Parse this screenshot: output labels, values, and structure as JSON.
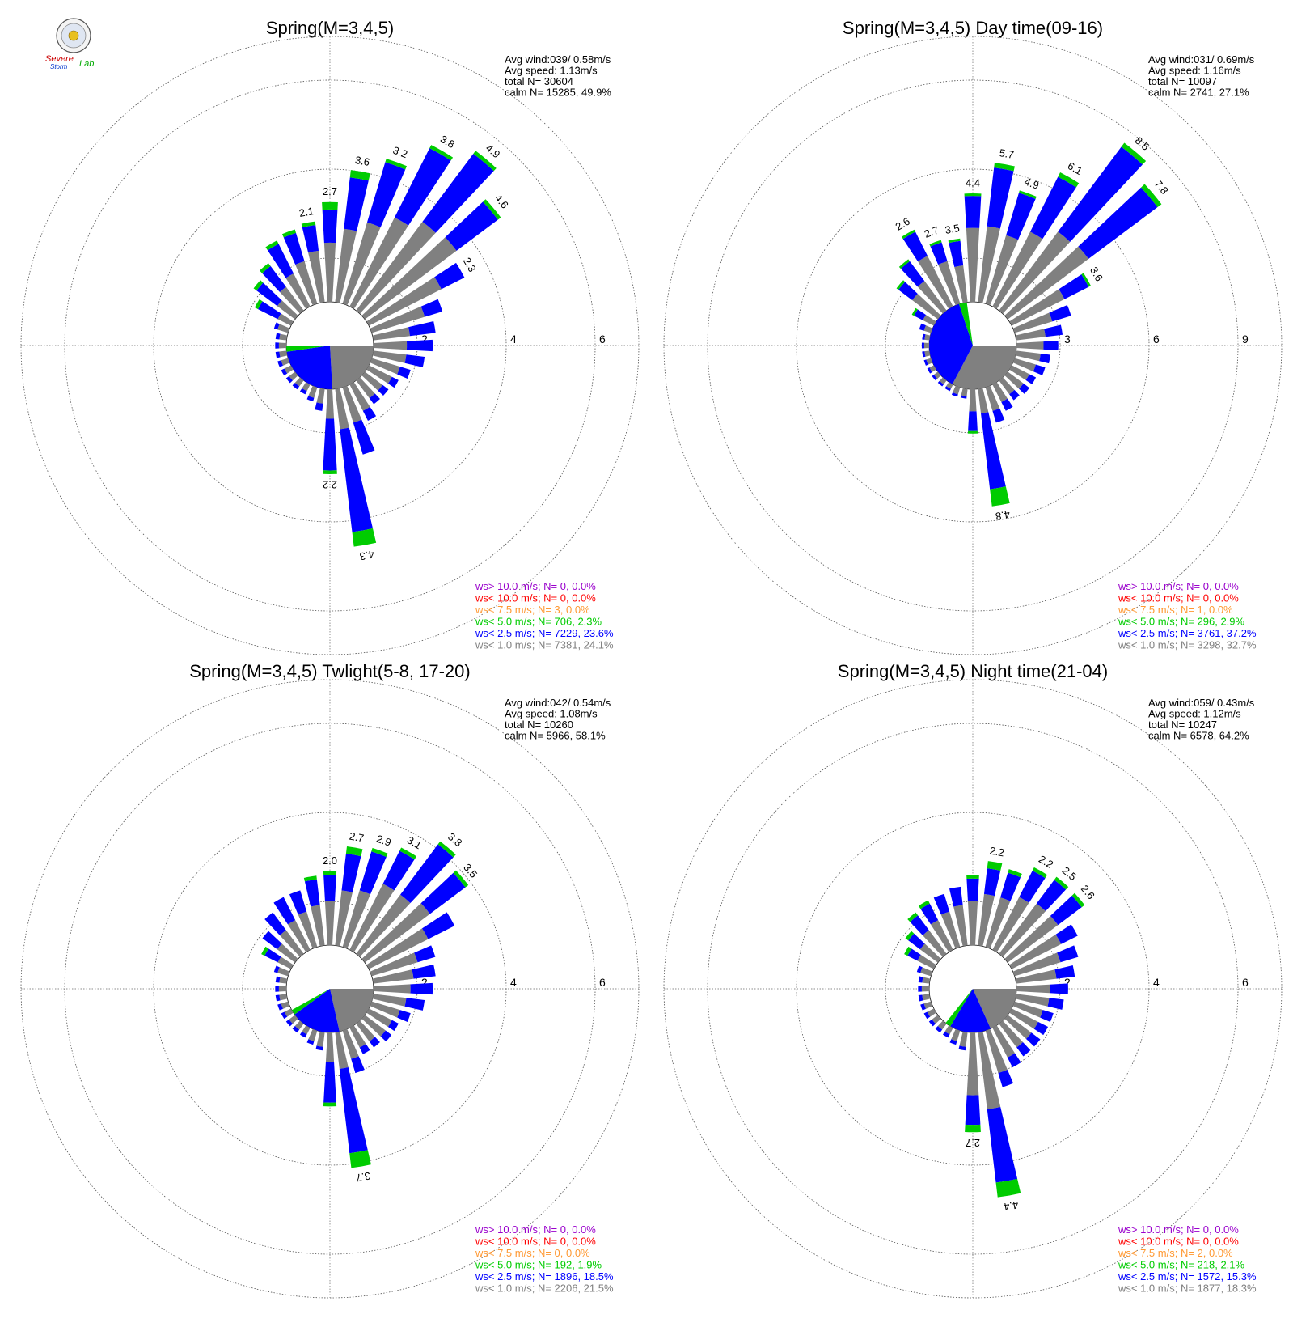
{
  "logo": {
    "text_severe": "Severe",
    "text_storm": "Storm",
    "text_lab": "Lab."
  },
  "legend_colors": {
    "ws_gt_10": "#9900cc",
    "ws_lt_10": "#ff0000",
    "ws_lt_7_5": "#ff9933",
    "ws_lt_5": "#00cc00",
    "ws_lt_2_5": "#0000ff",
    "ws_lt_1": "#808080"
  },
  "chart_data": [
    {
      "type": "wind-rose",
      "title": "Spring(M=3,4,5)",
      "rings": [
        2,
        4,
        6
      ],
      "ring_labels": [
        "2",
        "4",
        "6"
      ],
      "stats": {
        "line1": "Avg wind:039/ 0.58m/s",
        "line2": "Avg speed: 1.13m/s",
        "line3": "total N=      30604",
        "line4": "calm N=  15285,  49.9%"
      },
      "directions_deg": [
        0,
        10,
        20,
        30,
        40,
        50,
        60,
        70,
        80,
        90,
        100,
        110,
        120,
        130,
        140,
        150,
        160,
        170,
        180,
        190,
        200,
        210,
        220,
        230,
        240,
        250,
        260,
        270,
        280,
        290,
        300,
        310,
        320,
        330,
        340,
        350
      ],
      "gray_pct": [
        1.6,
        2.0,
        2.3,
        2.7,
        3.0,
        3.1,
        2.2,
        1.5,
        1.0,
        0.9,
        0.9,
        0.8,
        0.7,
        0.6,
        0.6,
        0.8,
        1.0,
        1.1,
        0.8,
        0.4,
        0.3,
        0.2,
        0.2,
        0.2,
        0.2,
        0.2,
        0.2,
        0.2,
        0.2,
        0.3,
        0.4,
        0.6,
        0.8,
        1.0,
        1.2,
        1.4
      ],
      "blue_pct": [
        0.9,
        1.4,
        1.7,
        2.1,
        2.3,
        1.4,
        0.7,
        0.5,
        0.7,
        0.7,
        0.5,
        0.3,
        0.2,
        0.2,
        0.2,
        0.3,
        0.9,
        2.8,
        1.4,
        0.2,
        0.1,
        0.1,
        0.1,
        0.1,
        0.1,
        0.1,
        0.1,
        0.1,
        0.1,
        0.1,
        0.6,
        0.7,
        0.7,
        0.9,
        0.8,
        0.7
      ],
      "green_pct": [
        0.2,
        0.2,
        0.1,
        0.1,
        0.1,
        0.1,
        0.0,
        0.0,
        0.0,
        0.0,
        0.0,
        0.0,
        0.0,
        0.0,
        0.0,
        0.0,
        0.0,
        0.4,
        0.1,
        0.0,
        0.0,
        0.0,
        0.0,
        0.0,
        0.0,
        0.0,
        0.0,
        0.0,
        0.0,
        0.0,
        0.1,
        0.1,
        0.1,
        0.1,
        0.1,
        0.1
      ],
      "bar_labels": [
        {
          "dir": 0,
          "text": "2.7"
        },
        {
          "dir": 10,
          "text": "3.6"
        },
        {
          "dir": 20,
          "text": "3.2"
        },
        {
          "dir": 30,
          "text": "3.8"
        },
        {
          "dir": 40,
          "text": "4.9"
        },
        {
          "dir": 50,
          "text": "4.6"
        },
        {
          "dir": 60,
          "text": "2.3"
        },
        {
          "dir": 170,
          "text": "4.3"
        },
        {
          "dir": 180,
          "text": "2.2"
        },
        {
          "dir": 350,
          "text": "2.1"
        }
      ],
      "pie": [
        {
          "label": "ws< 1.0 m/s",
          "pct": 24.1,
          "color": "#808080"
        },
        {
          "label": "ws< 2.5 m/s",
          "pct": 23.6,
          "color": "#0000ff"
        },
        {
          "label": "ws< 5.0 m/s",
          "pct": 2.3,
          "color": "#00cc00"
        }
      ],
      "legend": [
        {
          "text": "ws> 10.0 m/s; N=     0,  0.0%",
          "color": "#9900cc"
        },
        {
          "text": "ws< 10.0 m/s; N=     0,  0.0%",
          "color": "#ff0000"
        },
        {
          "text": "ws<  7.5 m/s; N=     3,  0.0%",
          "color": "#ff9933"
        },
        {
          "text": "ws<  5.0 m/s; N=   706,  2.3%",
          "color": "#00cc00"
        },
        {
          "text": "ws<  2.5 m/s; N=  7229, 23.6%",
          "color": "#0000ff"
        },
        {
          "text": "ws<  1.0 m/s; N=  7381, 24.1%",
          "color": "#808080"
        }
      ]
    },
    {
      "type": "wind-rose",
      "title": "Spring(M=3,4,5) Day time(09-16)",
      "rings": [
        3,
        6,
        9
      ],
      "ring_labels": [
        "3",
        "6",
        "9"
      ],
      "stats": {
        "line1": "Avg wind:031/ 0.69m/s",
        "line2": "Avg speed: 1.16m/s",
        "line3": "total N=      10097",
        "line4": "calm N=   2741,  27.1%"
      },
      "directions_deg": [
        0,
        10,
        20,
        30,
        40,
        50,
        60,
        70,
        80,
        90,
        100,
        110,
        120,
        130,
        140,
        150,
        160,
        170,
        180,
        190,
        200,
        210,
        220,
        230,
        240,
        250,
        260,
        270,
        280,
        290,
        300,
        310,
        320,
        330,
        340,
        350
      ],
      "gray_pct": [
        3.0,
        3.1,
        2.9,
        3.4,
        4.0,
        4.1,
        2.4,
        1.6,
        1.2,
        1.1,
        1.0,
        0.9,
        0.8,
        0.8,
        0.7,
        0.8,
        1.0,
        1.0,
        0.9,
        0.3,
        0.3,
        0.2,
        0.2,
        0.2,
        0.2,
        0.2,
        0.2,
        0.2,
        0.2,
        0.3,
        0.5,
        1.3,
        1.5,
        2.3,
        1.8,
        1.5
      ],
      "blue_pct": [
        1.3,
        2.4,
        1.8,
        2.5,
        4.3,
        3.5,
        1.1,
        0.8,
        0.7,
        0.6,
        0.4,
        0.4,
        0.3,
        0.3,
        0.3,
        0.4,
        0.5,
        3.1,
        0.8,
        0.1,
        0.1,
        0.1,
        0.1,
        0.1,
        0.1,
        0.1,
        0.1,
        0.1,
        0.1,
        0.2,
        0.4,
        0.7,
        1.0,
        1.1,
        0.8,
        1.0
      ],
      "green_pct": [
        0.1,
        0.2,
        0.1,
        0.2,
        0.2,
        0.2,
        0.1,
        0.0,
        0.0,
        0.0,
        0.0,
        0.0,
        0.0,
        0.0,
        0.0,
        0.0,
        0.0,
        0.7,
        0.1,
        0.0,
        0.0,
        0.0,
        0.0,
        0.0,
        0.0,
        0.0,
        0.0,
        0.0,
        0.0,
        0.0,
        0.1,
        0.1,
        0.1,
        0.1,
        0.1,
        0.1
      ],
      "bar_labels": [
        {
          "dir": 0,
          "text": "4.4"
        },
        {
          "dir": 10,
          "text": "5.7"
        },
        {
          "dir": 20,
          "text": "4.9"
        },
        {
          "dir": 30,
          "text": "6.1"
        },
        {
          "dir": 40,
          "text": "8.5"
        },
        {
          "dir": 50,
          "text": "7.8"
        },
        {
          "dir": 60,
          "text": "3.6"
        },
        {
          "dir": 170,
          "text": "4.8"
        },
        {
          "dir": 330,
          "text": "2.6"
        },
        {
          "dir": 340,
          "text": "2.7"
        },
        {
          "dir": 350,
          "text": "3.5"
        }
      ],
      "pie": [
        {
          "label": "ws< 1.0 m/s",
          "pct": 32.7,
          "color": "#808080"
        },
        {
          "label": "ws< 2.5 m/s",
          "pct": 37.2,
          "color": "#0000ff"
        },
        {
          "label": "ws< 5.0 m/s",
          "pct": 2.9,
          "color": "#00cc00"
        }
      ],
      "legend": [
        {
          "text": "ws> 10.0 m/s; N=     0,  0.0%",
          "color": "#9900cc"
        },
        {
          "text": "ws< 10.0 m/s; N=     0,  0.0%",
          "color": "#ff0000"
        },
        {
          "text": "ws<  7.5 m/s; N=     1,  0.0%",
          "color": "#ff9933"
        },
        {
          "text": "ws<  5.0 m/s; N=   296,  2.9%",
          "color": "#00cc00"
        },
        {
          "text": "ws<  2.5 m/s; N=  3761, 37.2%",
          "color": "#0000ff"
        },
        {
          "text": "ws<  1.0 m/s; N=  3298, 32.7%",
          "color": "#808080"
        }
      ]
    },
    {
      "type": "wind-rose",
      "title": "Spring(M=3,4,5) Twlight(5-8, 17-20)",
      "rings": [
        2,
        4,
        6
      ],
      "ring_labels": [
        "2",
        "4",
        "6"
      ],
      "stats": {
        "line1": "Avg wind:042/ 0.54m/s",
        "line2": "Avg speed: 1.08m/s",
        "line3": "total N=      10260",
        "line4": "calm N=   5966,  58.1%"
      },
      "directions_deg": [
        0,
        10,
        20,
        30,
        40,
        50,
        60,
        70,
        80,
        90,
        100,
        110,
        120,
        130,
        140,
        150,
        160,
        170,
        180,
        190,
        200,
        210,
        220,
        230,
        240,
        250,
        260,
        270,
        280,
        290,
        300,
        310,
        320,
        330,
        340,
        350
      ],
      "gray_pct": [
        1.2,
        1.5,
        1.6,
        2.0,
        2.0,
        2.2,
        1.8,
        1.3,
        1.1,
        1.0,
        0.9,
        0.8,
        0.7,
        0.7,
        0.6,
        0.6,
        0.8,
        1.0,
        0.8,
        0.4,
        0.3,
        0.2,
        0.2,
        0.2,
        0.2,
        0.2,
        0.2,
        0.2,
        0.2,
        0.3,
        0.4,
        0.6,
        0.8,
        0.9,
        1.0,
        1.1
      ],
      "blue_pct": [
        0.7,
        1.0,
        1.1,
        1.0,
        1.7,
        1.2,
        0.8,
        0.5,
        0.6,
        0.6,
        0.5,
        0.3,
        0.2,
        0.2,
        0.2,
        0.2,
        0.4,
        2.3,
        1.1,
        0.1,
        0.1,
        0.1,
        0.1,
        0.1,
        0.1,
        0.1,
        0.1,
        0.1,
        0.1,
        0.1,
        0.4,
        0.5,
        0.6,
        0.7,
        0.6,
        0.7
      ],
      "green_pct": [
        0.1,
        0.2,
        0.1,
        0.1,
        0.1,
        0.1,
        0.0,
        0.0,
        0.0,
        0.0,
        0.0,
        0.0,
        0.0,
        0.0,
        0.0,
        0.0,
        0.0,
        0.4,
        0.1,
        0.0,
        0.0,
        0.0,
        0.0,
        0.0,
        0.0,
        0.0,
        0.0,
        0.0,
        0.0,
        0.0,
        0.1,
        0.0,
        0.0,
        0.0,
        0.0,
        0.1
      ],
      "bar_labels": [
        {
          "dir": 0,
          "text": "2.0"
        },
        {
          "dir": 10,
          "text": "2.7"
        },
        {
          "dir": 20,
          "text": "2.9"
        },
        {
          "dir": 30,
          "text": "3.1"
        },
        {
          "dir": 40,
          "text": "3.8"
        },
        {
          "dir": 50,
          "text": "3.5"
        },
        {
          "dir": 170,
          "text": "3.7"
        }
      ],
      "pie": [
        {
          "label": "ws< 1.0 m/s",
          "pct": 21.5,
          "color": "#808080"
        },
        {
          "label": "ws< 2.5 m/s",
          "pct": 18.5,
          "color": "#0000ff"
        },
        {
          "label": "ws< 5.0 m/s",
          "pct": 1.9,
          "color": "#00cc00"
        }
      ],
      "legend": [
        {
          "text": "ws> 10.0 m/s; N=     0,  0.0%",
          "color": "#9900cc"
        },
        {
          "text": "ws< 10.0 m/s; N=     0,  0.0%",
          "color": "#ff0000"
        },
        {
          "text": "ws<  7.5 m/s; N=     0,  0.0%",
          "color": "#ff9933"
        },
        {
          "text": "ws<  5.0 m/s; N=   192,  1.9%",
          "color": "#00cc00"
        },
        {
          "text": "ws<  2.5 m/s; N=  1896, 18.5%",
          "color": "#0000ff"
        },
        {
          "text": "ws<  1.0 m/s; N=  2206, 21.5%",
          "color": "#808080"
        }
      ]
    },
    {
      "type": "wind-rose",
      "title": "Spring(M=3,4,5) Night time(21-04)",
      "rings": [
        2,
        4,
        6
      ],
      "ring_labels": [
        "2",
        "4",
        "6"
      ],
      "stats": {
        "line1": "Avg wind:059/ 0.43m/s",
        "line2": "Avg speed: 1.12m/s",
        "line3": "total N=      10247",
        "line4": "calm N=   6578,  64.2%"
      },
      "directions_deg": [
        0,
        10,
        20,
        30,
        40,
        50,
        60,
        70,
        80,
        90,
        100,
        110,
        120,
        130,
        140,
        150,
        160,
        170,
        180,
        190,
        200,
        210,
        220,
        230,
        240,
        250,
        260,
        270,
        280,
        290,
        300,
        310,
        320,
        330,
        340,
        350
      ],
      "gray_pct": [
        1.2,
        1.4,
        1.4,
        1.6,
        1.7,
        1.7,
        1.5,
        1.3,
        1.1,
        0.9,
        0.9,
        0.8,
        0.8,
        0.8,
        0.8,
        0.9,
        1.2,
        2.1,
        1.7,
        0.4,
        0.3,
        0.2,
        0.2,
        0.2,
        0.2,
        0.2,
        0.2,
        0.2,
        0.2,
        0.3,
        0.5,
        0.6,
        0.8,
        0.9,
        1.0,
        1.1
      ],
      "blue_pct": [
        0.6,
        0.7,
        0.7,
        0.8,
        0.8,
        0.8,
        0.5,
        0.5,
        0.5,
        0.5,
        0.4,
        0.3,
        0.3,
        0.3,
        0.3,
        0.3,
        0.4,
        2.0,
        0.8,
        0.1,
        0.1,
        0.1,
        0.1,
        0.1,
        0.1,
        0.1,
        0.1,
        0.1,
        0.1,
        0.1,
        0.3,
        0.4,
        0.5,
        0.5,
        0.5,
        0.5
      ],
      "green_pct": [
        0.1,
        0.2,
        0.1,
        0.1,
        0.1,
        0.1,
        0.0,
        0.0,
        0.0,
        0.0,
        0.0,
        0.0,
        0.0,
        0.0,
        0.0,
        0.0,
        0.0,
        0.4,
        0.2,
        0.0,
        0.0,
        0.0,
        0.0,
        0.0,
        0.0,
        0.0,
        0.0,
        0.0,
        0.0,
        0.0,
        0.1,
        0.1,
        0.1,
        0.1,
        0.0,
        0.0
      ],
      "bar_labels": [
        {
          "dir": 10,
          "text": "2.2"
        },
        {
          "dir": 30,
          "text": "2.2"
        },
        {
          "dir": 40,
          "text": "2.5"
        },
        {
          "dir": 50,
          "text": "2.6"
        },
        {
          "dir": 170,
          "text": "4.4"
        },
        {
          "dir": 180,
          "text": "2.7"
        }
      ],
      "pie": [
        {
          "label": "ws< 1.0 m/s",
          "pct": 18.3,
          "color": "#808080"
        },
        {
          "label": "ws< 2.5 m/s",
          "pct": 15.3,
          "color": "#0000ff"
        },
        {
          "label": "ws< 5.0 m/s",
          "pct": 2.1,
          "color": "#00cc00"
        }
      ],
      "legend": [
        {
          "text": "ws> 10.0 m/s; N=     0,  0.0%",
          "color": "#9900cc"
        },
        {
          "text": "ws< 10.0 m/s; N=     0,  0.0%",
          "color": "#ff0000"
        },
        {
          "text": "ws<  7.5 m/s; N=     2,  0.0%",
          "color": "#ff9933"
        },
        {
          "text": "ws<  5.0 m/s; N=   218,  2.1%",
          "color": "#00cc00"
        },
        {
          "text": "ws<  2.5 m/s; N=  1572, 15.3%",
          "color": "#0000ff"
        },
        {
          "text": "ws<  1.0 m/s; N=  1877, 18.3%",
          "color": "#808080"
        }
      ]
    }
  ]
}
